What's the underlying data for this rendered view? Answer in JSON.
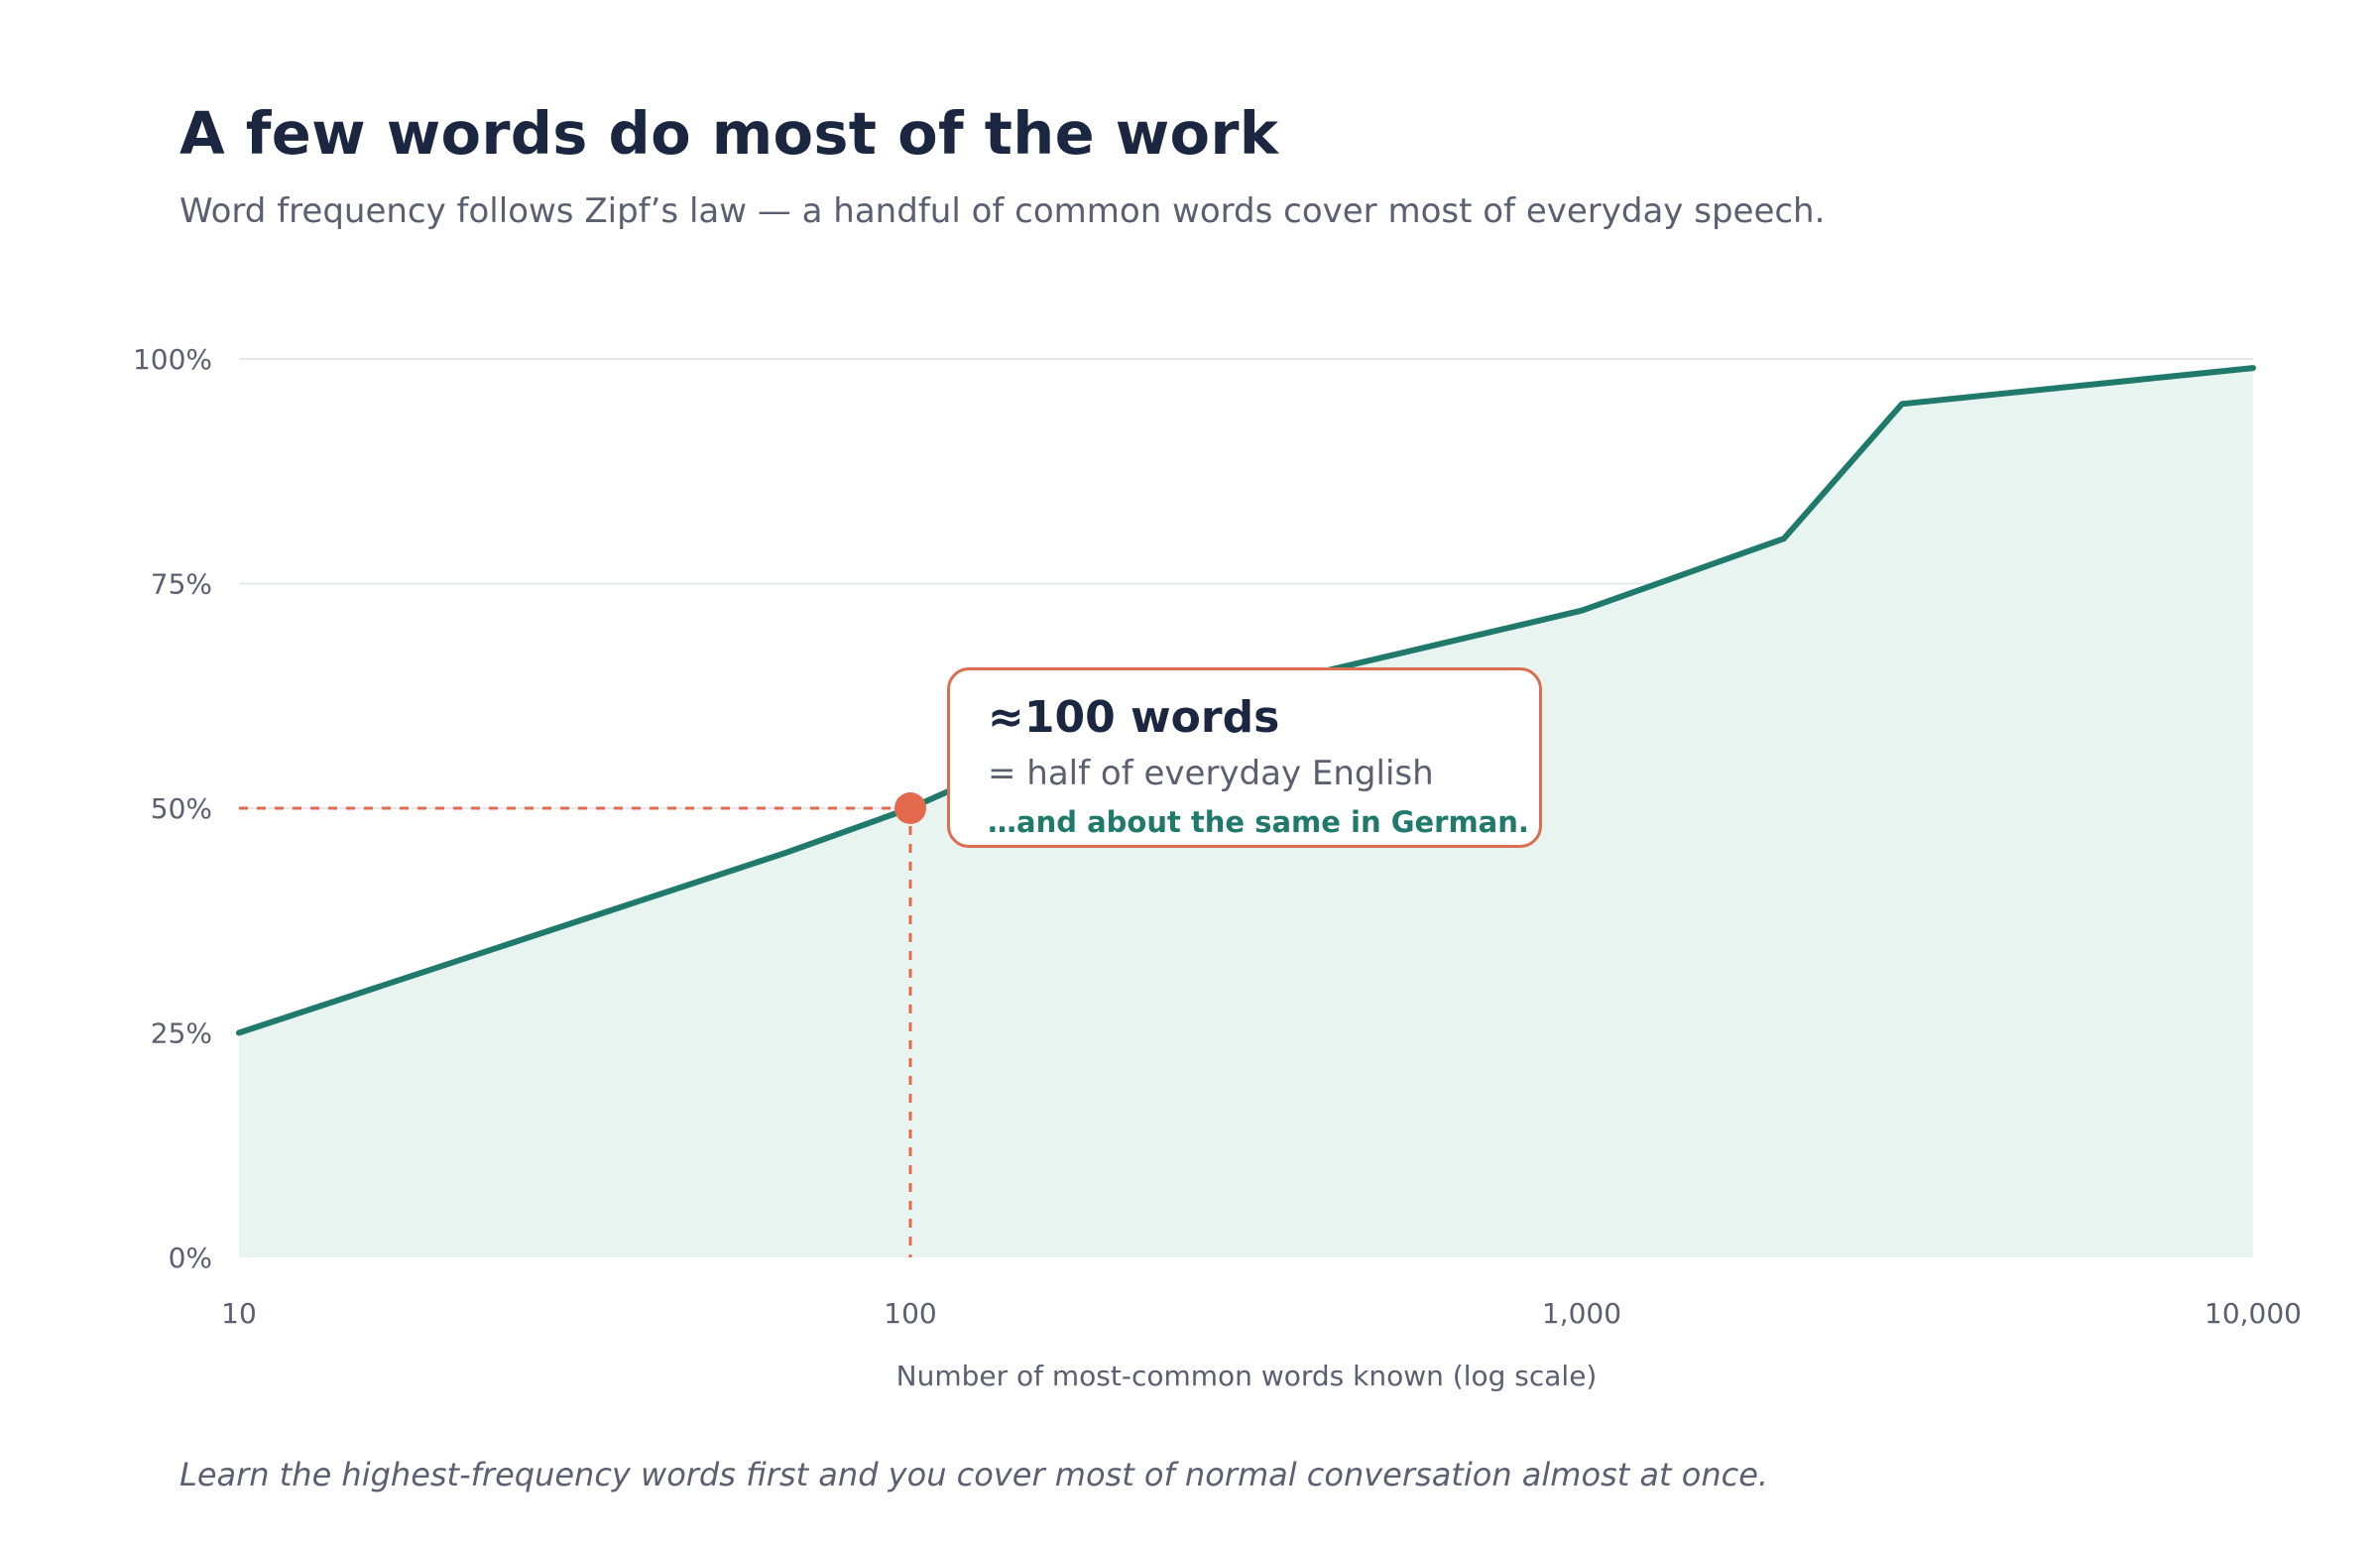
{
  "title": "A few words do most of the work",
  "subtitle": "Word frequency follows Zipf’s law — a handful of common words cover most of everyday speech.",
  "footnote": "Learn the highest-frequency words first and you cover most of normal conversation almost at once.",
  "colors": {
    "line": "#1f7a6c",
    "area": "#e8f4ef",
    "highlight": "#e36a4d",
    "grid": "#e6e8ec",
    "text": "#1b2740",
    "muted": "#5a6070"
  },
  "chart_data": {
    "type": "area",
    "x_scale": "log",
    "xlabel": "Number of most-common words known (log scale)",
    "ylabel": "",
    "xlim": [
      10,
      10000
    ],
    "ylim": [
      0,
      100
    ],
    "x_ticks": [
      10,
      100,
      1000,
      10000
    ],
    "x_tick_labels": [
      "10",
      "100",
      "1,000",
      "10,000"
    ],
    "y_ticks": [
      0,
      25,
      50,
      75,
      100
    ],
    "y_tick_labels": [
      "0%",
      "25%",
      "50%",
      "75%",
      "100%"
    ],
    "grid": true,
    "series": [
      {
        "x": [
          10,
          65,
          100,
          200,
          400,
          1000,
          2000,
          3000,
          10000
        ],
        "y": [
          25,
          45,
          50,
          60,
          65,
          72,
          80,
          95,
          99
        ]
      }
    ],
    "highlight": {
      "x": 100,
      "y": 50,
      "label": "≈100 words",
      "sublabel": "= half of everyday English",
      "note": "…and about the same in German."
    }
  }
}
